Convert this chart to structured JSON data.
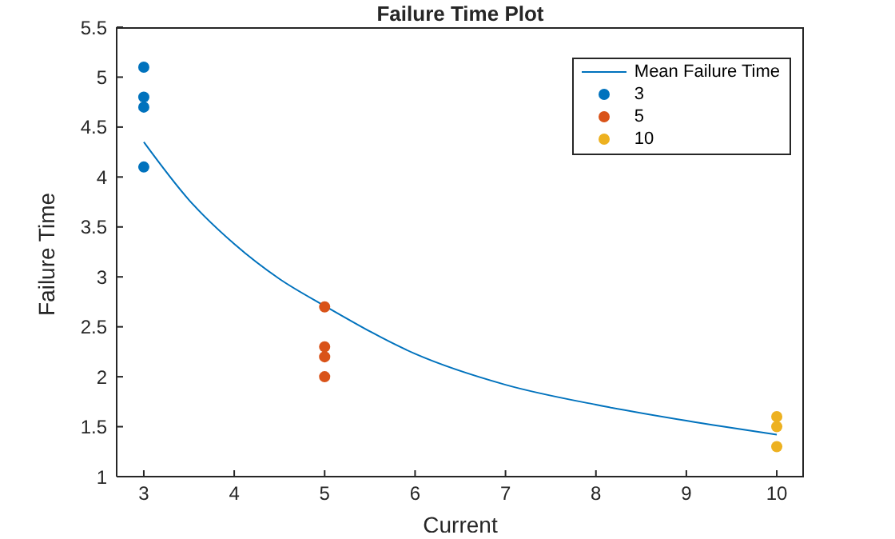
{
  "chart_data": {
    "type": "scatter",
    "title": "Failure Time Plot",
    "xlabel": "Current",
    "ylabel": "Failure Time",
    "xlim": [
      2.7,
      10.3
    ],
    "xticks": [
      3,
      4,
      5,
      6,
      7,
      8,
      9,
      10
    ],
    "ylim": [
      1,
      5.5
    ],
    "yticks": [
      1,
      1.5,
      2,
      2.5,
      3,
      3.5,
      4,
      4.5,
      5,
      5.5
    ],
    "series": [
      {
        "name": "Mean Failure Time",
        "type": "line",
        "marker": "none",
        "color": "#0072bd",
        "x": [
          3,
          3.5,
          4,
          4.5,
          5,
          6,
          7,
          8,
          9,
          10
        ],
        "values": [
          4.35,
          3.77,
          3.33,
          2.98,
          2.71,
          2.23,
          1.92,
          1.72,
          1.56,
          1.42
        ]
      },
      {
        "name": "3",
        "marker": "circle",
        "color": "#0072bd",
        "x": [
          3,
          3,
          3,
          3
        ],
        "values": [
          5.1,
          4.8,
          4.7,
          4.1
        ]
      },
      {
        "name": "5",
        "marker": "circle",
        "color": "#d95319",
        "x": [
          5,
          5,
          5,
          5
        ],
        "values": [
          2.7,
          2.3,
          2.2,
          2.0
        ]
      },
      {
        "name": "10",
        "marker": "circle",
        "color": "#edb120",
        "x": [
          10,
          10,
          10
        ],
        "values": [
          1.6,
          1.5,
          1.3
        ]
      }
    ],
    "legend": "top right",
    "grid": false
  }
}
